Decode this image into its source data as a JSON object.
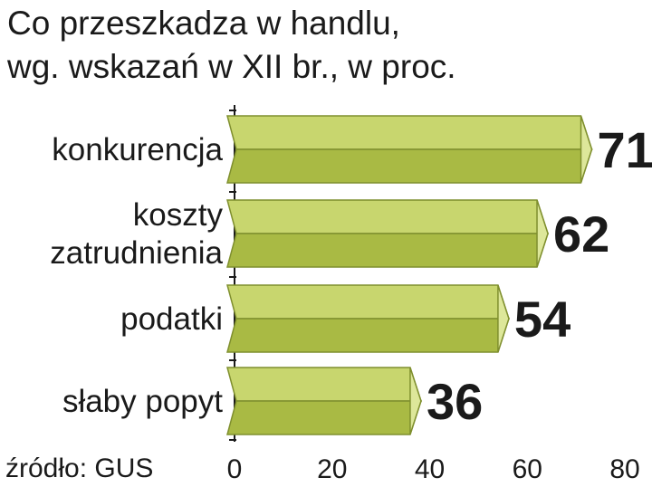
{
  "title": {
    "line1": "Co przeszkadza w handlu,",
    "line2": "wg. wskazań w XII br., w proc."
  },
  "source": "źródło: GUS",
  "colors": {
    "bar_top": "#c8d66e",
    "bar_bottom": "#a9ba44",
    "bar_tip": "#dde79a",
    "stroke": "#7f8f2e",
    "text": "#1a1a1a",
    "axis": "#1a1a1a"
  },
  "chart_data": {
    "type": "bar",
    "orientation": "horizontal",
    "categories": [
      [
        "konkurencja"
      ],
      [
        "koszty",
        "zatrudnienia"
      ],
      [
        "podatki"
      ],
      [
        "słaby popyt"
      ]
    ],
    "values": [
      71,
      62,
      54,
      36
    ],
    "xlim": [
      0,
      80
    ],
    "xticks": [
      0,
      20,
      40,
      60,
      80
    ],
    "xlabel": "",
    "ylabel": "",
    "grid": false,
    "legend": "none"
  }
}
